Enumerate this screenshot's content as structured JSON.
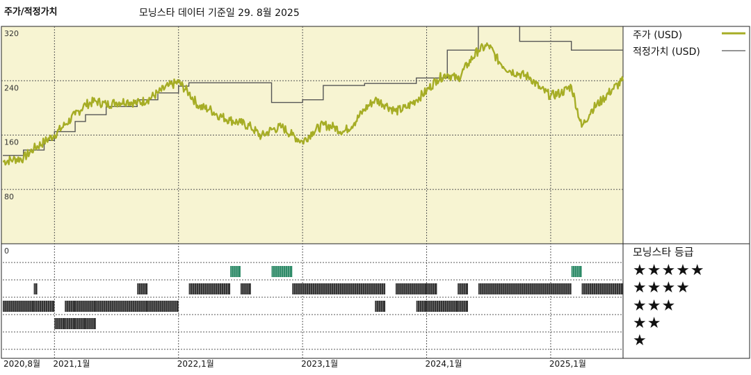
{
  "header": {
    "title": "주가/적정가치",
    "subtitle": "모닝스타 데이터 기준일 29. 8월 2025"
  },
  "legend": {
    "price": "주가 (USD)",
    "fair_value": "적정가치 (USD)"
  },
  "rating_panel": {
    "title": "모닝스타 등급",
    "stars": [
      "★★★★★",
      "★★★★",
      "★★★",
      "★★",
      "★"
    ]
  },
  "colors": {
    "panel_bg": "#f7f4d2",
    "price_line": "#a6ad25",
    "fair_line": "#555555",
    "five_star": "#2e8b68",
    "rating_bar": "#333333"
  },
  "chart_data": {
    "type": "line",
    "title": "주가/적정가치",
    "ylim": [
      0,
      320
    ],
    "y_ticks": [
      "320",
      "240",
      "160",
      "80",
      "0"
    ],
    "x_ticks": [
      "2020,8월",
      "2021,1월",
      "2022,1월",
      "2023,1월",
      "2024,1월",
      "2025,1월"
    ],
    "x_range": [
      "2020-08",
      "2025-08"
    ],
    "series": [
      {
        "name": "주가 (USD)",
        "points": [
          [
            "2020-08",
            121
          ],
          [
            "2020-09",
            124
          ],
          [
            "2020-10",
            126
          ],
          [
            "2020-11",
            140
          ],
          [
            "2020-12",
            150
          ],
          [
            "2021-01",
            160
          ],
          [
            "2021-02",
            175
          ],
          [
            "2021-03",
            190
          ],
          [
            "2021-04",
            205
          ],
          [
            "2021-05",
            210
          ],
          [
            "2021-06",
            205
          ],
          [
            "2021-07",
            208
          ],
          [
            "2021-08",
            210
          ],
          [
            "2021-09",
            207
          ],
          [
            "2021-10",
            212
          ],
          [
            "2021-11",
            222
          ],
          [
            "2021-12",
            232
          ],
          [
            "2022-01",
            238
          ],
          [
            "2022-02",
            222
          ],
          [
            "2022-03",
            202
          ],
          [
            "2022-04",
            198
          ],
          [
            "2022-05",
            188
          ],
          [
            "2022-06",
            182
          ],
          [
            "2022-07",
            178
          ],
          [
            "2022-08",
            172
          ],
          [
            "2022-09",
            158
          ],
          [
            "2022-10",
            168
          ],
          [
            "2022-11",
            172
          ],
          [
            "2022-12",
            160
          ],
          [
            "2023-01",
            150
          ],
          [
            "2023-02",
            165
          ],
          [
            "2023-03",
            175
          ],
          [
            "2023-04",
            172
          ],
          [
            "2023-05",
            165
          ],
          [
            "2023-06",
            178
          ],
          [
            "2023-07",
            198
          ],
          [
            "2023-08",
            212
          ],
          [
            "2023-09",
            205
          ],
          [
            "2023-10",
            195
          ],
          [
            "2023-11",
            200
          ],
          [
            "2023-12",
            212
          ],
          [
            "2024-01",
            225
          ],
          [
            "2024-02",
            242
          ],
          [
            "2024-03",
            250
          ],
          [
            "2024-04",
            242
          ],
          [
            "2024-05",
            265
          ],
          [
            "2024-06",
            285
          ],
          [
            "2024-07",
            292
          ],
          [
            "2024-08",
            268
          ],
          [
            "2024-09",
            255
          ],
          [
            "2024-10",
            250
          ],
          [
            "2024-11",
            245
          ],
          [
            "2024-12",
            228
          ],
          [
            "2025-01",
            218
          ],
          [
            "2025-02",
            222
          ],
          [
            "2025-03",
            232
          ],
          [
            "2025-04",
            172
          ],
          [
            "2025-05",
            198
          ],
          [
            "2025-06",
            212
          ],
          [
            "2025-07",
            228
          ],
          [
            "2025-08",
            240
          ]
        ]
      },
      {
        "name": "적정가치 (USD)",
        "points": [
          [
            "2020-08",
            130
          ],
          [
            "2020-10",
            138
          ],
          [
            "2020-12",
            152
          ],
          [
            "2021-01",
            165
          ],
          [
            "2021-03",
            180
          ],
          [
            "2021-04",
            190
          ],
          [
            "2021-06",
            202
          ],
          [
            "2021-09",
            212
          ],
          [
            "2021-11",
            222
          ],
          [
            "2022-01",
            232
          ],
          [
            "2022-02",
            237
          ],
          [
            "2022-09",
            237
          ],
          [
            "2022-10",
            208
          ],
          [
            "2023-01",
            212
          ],
          [
            "2023-03",
            233
          ],
          [
            "2023-07",
            236
          ],
          [
            "2023-12",
            244
          ],
          [
            "2024-03",
            285
          ],
          [
            "2024-06",
            320
          ],
          [
            "2024-10",
            298
          ],
          [
            "2025-03",
            285
          ],
          [
            "2025-08",
            285
          ]
        ]
      }
    ],
    "rating_history": [
      {
        "stars": 5,
        "periods": [
          [
            "2022-06",
            "2022-07"
          ],
          [
            "2022-10",
            "2022-12"
          ],
          [
            "2025-03",
            "2025-04"
          ]
        ]
      },
      {
        "stars": 4,
        "periods": [
          [
            "2020-11",
            "2020-11"
          ],
          [
            "2021-09",
            "2021-10"
          ],
          [
            "2022-02",
            "2022-06"
          ],
          [
            "2022-07",
            "2022-08"
          ],
          [
            "2022-12",
            "2023-09"
          ],
          [
            "2023-10",
            "2024-01"
          ],
          [
            "2024-01",
            "2024-02"
          ],
          [
            "2024-04",
            "2024-05"
          ],
          [
            "2024-06",
            "2025-03"
          ],
          [
            "2025-04",
            "2025-08"
          ]
        ]
      },
      {
        "stars": 3,
        "periods": [
          [
            "2020-08",
            "2020-11"
          ],
          [
            "2020-11",
            "2021-01"
          ],
          [
            "2021-02",
            "2021-03"
          ],
          [
            "2021-03",
            "2021-05"
          ],
          [
            "2021-05",
            "2021-10"
          ],
          [
            "2021-10",
            "2022-01"
          ],
          [
            "2023-08",
            "2023-09"
          ],
          [
            "2023-12",
            "2024-01"
          ],
          [
            "2024-01",
            "2024-04"
          ],
          [
            "2024-04",
            "2024-05"
          ]
        ]
      },
      {
        "stars": 2,
        "periods": [
          [
            "2021-01",
            "2021-02"
          ],
          [
            "2021-02",
            "2021-03"
          ],
          [
            "2021-03",
            "2021-04"
          ],
          [
            "2021-04",
            "2021-05"
          ]
        ]
      }
    ]
  }
}
